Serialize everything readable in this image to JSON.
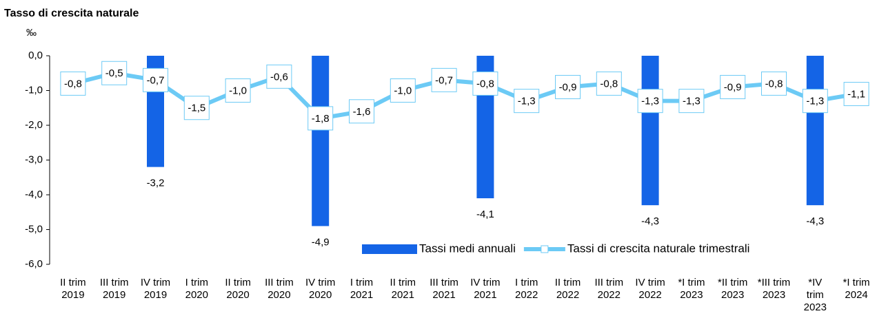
{
  "chart_data": {
    "type": "combo",
    "title": "Tasso di crescita naturale",
    "ylabel": "‰",
    "categories": [
      "II trim\n2019",
      "III trim\n2019",
      "IV trim\n2019",
      "I trim\n2020",
      "II trim\n2020",
      "III trim\n2020",
      "IV trim\n2020",
      "I trim\n2021",
      "II trim\n2021",
      "III trim\n2021",
      "IV trim\n2021",
      "I trim\n2022",
      "II trim\n2022",
      "III trim\n2022",
      "IV trim\n2022",
      "*I trim\n2023",
      "*II trim\n2023",
      "*III trim\n2023",
      "*IV\ntrim\n2023",
      "*I trim\n2024"
    ],
    "series": [
      {
        "name": "Tassi medi annuali",
        "type": "bar",
        "color": "#1464e6",
        "values": [
          null,
          null,
          -3.2,
          null,
          null,
          null,
          -4.9,
          null,
          null,
          null,
          -4.1,
          null,
          null,
          null,
          -4.3,
          null,
          null,
          null,
          -4.3,
          null
        ],
        "value_labels": [
          null,
          null,
          "-3,2",
          null,
          null,
          null,
          "-4,9",
          null,
          null,
          null,
          "-4,1",
          null,
          null,
          null,
          "-4,3",
          null,
          null,
          null,
          "-4,3",
          null
        ]
      },
      {
        "name": "Tassi di crescita naturale trimestrali",
        "type": "line",
        "color": "#6ccaf5",
        "values": [
          -0.8,
          -0.5,
          -0.7,
          -1.5,
          -1.0,
          -0.6,
          -1.8,
          -1.6,
          -1.0,
          -0.7,
          -0.8,
          -1.3,
          -0.9,
          -0.8,
          -1.3,
          -1.3,
          -0.9,
          -0.8,
          -1.3,
          -1.1
        ],
        "value_labels": [
          "-0,8",
          "-0,5",
          "-0,7",
          "-1,5",
          "-1,0",
          "-0,6",
          "-1,8",
          "-1,6",
          "-1,0",
          "-0,7",
          "-0,8",
          "-1,3",
          "-0,9",
          "-0,8",
          "-1,3",
          "-1,3",
          "-0,9",
          "-0,8",
          "-1,3",
          "-1,1"
        ]
      }
    ],
    "ylim": [
      -6,
      0
    ],
    "yticks": [
      {
        "value": 0,
        "label": "0,0"
      },
      {
        "value": -1,
        "label": "-1,0"
      },
      {
        "value": -2,
        "label": "-2,0"
      },
      {
        "value": -3,
        "label": "-3,0"
      },
      {
        "value": -4,
        "label": "-4,0"
      },
      {
        "value": -5,
        "label": "-5,0"
      },
      {
        "value": -6,
        "label": "-6,0"
      }
    ],
    "grid": false,
    "legend": "lower right"
  }
}
